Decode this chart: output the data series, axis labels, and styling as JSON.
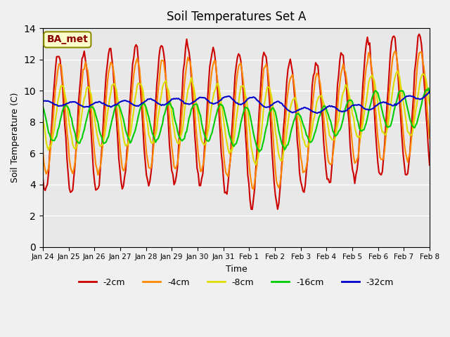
{
  "title": "Soil Temperatures Set A",
  "xlabel": "Time",
  "ylabel": "Soil Temperature (C)",
  "ylim": [
    0,
    14
  ],
  "yticks": [
    0,
    2,
    4,
    6,
    8,
    10,
    12,
    14
  ],
  "annotation": "BA_met",
  "series": {
    "-2cm": {
      "color": "#cc0000",
      "lw": 1.5
    },
    "-4cm": {
      "color": "#ff8800",
      "lw": 1.5
    },
    "-8cm": {
      "color": "#dddd00",
      "lw": 1.5
    },
    "-16cm": {
      "color": "#00cc00",
      "lw": 1.5
    },
    "-32cm": {
      "color": "#0000cc",
      "lw": 1.5
    }
  },
  "xtick_labels": [
    "Jan 24",
    "Jan 25",
    "Jan 26",
    "Jan 27",
    "Jan 28",
    "Jan 29",
    "Jan 30",
    "Jan 31",
    "Feb 1",
    "Feb 2",
    "Feb 3",
    "Feb 4",
    "Feb 5",
    "Feb 6",
    "Feb 7",
    "Feb 8"
  ],
  "n_points": 337
}
